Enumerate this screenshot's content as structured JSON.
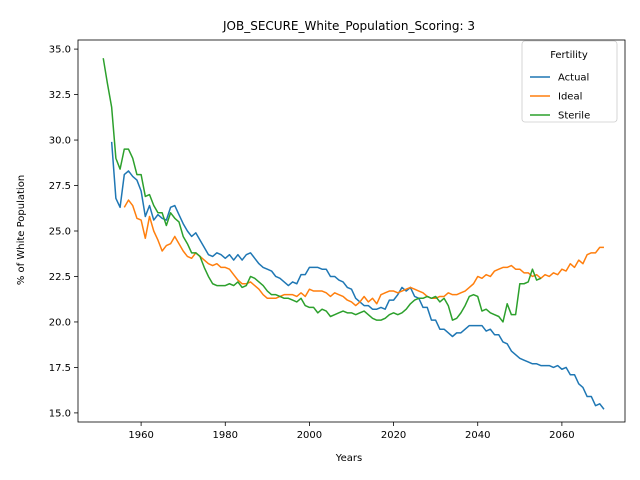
{
  "chart_data": {
    "type": "line",
    "title": "JOB_SECURE_White_Population_Scoring: 3",
    "xlabel": "Years",
    "ylabel": "% of White Population",
    "xlim": [
      1945,
      2075
    ],
    "ylim": [
      14.5,
      35.5
    ],
    "xticks": [
      1960,
      1980,
      2000,
      2020,
      2040,
      2060
    ],
    "yticks": [
      15.0,
      17.5,
      20.0,
      22.5,
      25.0,
      27.5,
      30.0,
      32.5,
      35.0
    ],
    "grid": false,
    "legend": {
      "title": "Fertility",
      "position": "top-right"
    },
    "series": [
      {
        "name": "Actual",
        "color": "#1f77b4",
        "x": [
          1953,
          1954,
          1955,
          1956,
          1957,
          1958,
          1959,
          1960,
          1961,
          1962,
          1963,
          1964,
          1965,
          1966,
          1967,
          1968,
          1969,
          1970,
          1971,
          1972,
          1973,
          1974,
          1975,
          1976,
          1977,
          1978,
          1979,
          1980,
          1981,
          1982,
          1983,
          1984,
          1985,
          1986,
          1987,
          1988,
          1989,
          1990,
          1991,
          1992,
          1993,
          1994,
          1995,
          1996,
          1997,
          1998,
          1999,
          2000,
          2001,
          2002,
          2003,
          2004,
          2005,
          2006,
          2007,
          2008,
          2009,
          2010,
          2011,
          2012,
          2013,
          2014,
          2015,
          2016,
          2017,
          2018,
          2019,
          2020,
          2021,
          2022,
          2023,
          2024,
          2025,
          2026,
          2027,
          2028,
          2029,
          2030,
          2031,
          2032,
          2033,
          2034,
          2035,
          2036,
          2037,
          2038,
          2039,
          2040,
          2041,
          2042,
          2043,
          2044,
          2045,
          2046,
          2047,
          2048,
          2049,
          2050,
          2051,
          2052,
          2053,
          2054,
          2055,
          2056,
          2057,
          2058,
          2059,
          2060,
          2061,
          2062,
          2063,
          2064,
          2065,
          2066,
          2067,
          2068,
          2069,
          2070
        ],
        "values": [
          29.9,
          26.8,
          26.3,
          28.1,
          28.3,
          28.0,
          27.8,
          27.2,
          25.8,
          26.4,
          25.6,
          25.9,
          25.7,
          25.6,
          26.3,
          26.4,
          25.9,
          25.4,
          25.0,
          24.7,
          24.9,
          24.5,
          24.1,
          23.7,
          23.6,
          23.8,
          23.7,
          23.5,
          23.7,
          23.4,
          23.7,
          23.4,
          23.7,
          23.8,
          23.5,
          23.2,
          23.0,
          22.9,
          22.8,
          22.5,
          22.4,
          22.2,
          22.0,
          22.2,
          22.1,
          22.6,
          22.6,
          23.0,
          23.0,
          23.0,
          22.9,
          22.9,
          22.5,
          22.5,
          22.3,
          22.2,
          21.9,
          21.8,
          21.3,
          21.1,
          20.9,
          20.9,
          20.7,
          20.7,
          20.8,
          20.7,
          21.2,
          21.2,
          21.5,
          21.9,
          21.7,
          21.9,
          21.4,
          21.3,
          20.8,
          20.8,
          20.1,
          20.1,
          19.6,
          19.6,
          19.4,
          19.2,
          19.4,
          19.4,
          19.6,
          19.8,
          19.8,
          19.8,
          19.8,
          19.5,
          19.6,
          19.3,
          19.3,
          18.9,
          18.8,
          18.4,
          18.2,
          18.0,
          17.9,
          17.8,
          17.7,
          17.7,
          17.6,
          17.6,
          17.6,
          17.5,
          17.6,
          17.4,
          17.5,
          17.1,
          17.1,
          16.6,
          16.4,
          15.9,
          15.9,
          15.4,
          15.5,
          15.2
        ]
      },
      {
        "name": "Ideal",
        "color": "#ff7f0e",
        "x": [
          1956,
          1957,
          1958,
          1959,
          1960,
          1961,
          1962,
          1963,
          1964,
          1965,
          1966,
          1967,
          1968,
          1969,
          1970,
          1971,
          1972,
          1973,
          1974,
          1975,
          1976,
          1977,
          1978,
          1979,
          1980,
          1981,
          1982,
          1983,
          1984,
          1985,
          1986,
          1987,
          1988,
          1989,
          1990,
          1991,
          1992,
          1993,
          1994,
          1995,
          1996,
          1997,
          1998,
          1999,
          2000,
          2001,
          2002,
          2003,
          2004,
          2005,
          2006,
          2007,
          2008,
          2009,
          2010,
          2011,
          2012,
          2013,
          2014,
          2015,
          2016,
          2017,
          2018,
          2019,
          2020,
          2021,
          2022,
          2023,
          2024,
          2025,
          2026,
          2027,
          2028,
          2029,
          2030,
          2031,
          2032,
          2033,
          2034,
          2035,
          2036,
          2037,
          2038,
          2039,
          2040,
          2041,
          2042,
          2043,
          2044,
          2045,
          2046,
          2047,
          2048,
          2049,
          2050,
          2051,
          2052,
          2053,
          2054,
          2055,
          2056,
          2057,
          2058,
          2059,
          2060,
          2061,
          2062,
          2063,
          2064,
          2065,
          2066,
          2067,
          2068,
          2069,
          2070
        ],
        "values": [
          26.3,
          26.7,
          26.4,
          25.7,
          25.6,
          24.6,
          25.8,
          25.0,
          24.5,
          23.9,
          24.2,
          24.3,
          24.7,
          24.3,
          23.9,
          23.6,
          23.5,
          23.8,
          23.6,
          23.4,
          23.2,
          23.1,
          23.2,
          23.0,
          23.0,
          22.9,
          22.6,
          22.3,
          22.1,
          22.1,
          22.2,
          22.0,
          21.8,
          21.5,
          21.3,
          21.3,
          21.3,
          21.4,
          21.5,
          21.5,
          21.5,
          21.4,
          21.6,
          21.4,
          21.8,
          21.7,
          21.7,
          21.7,
          21.6,
          21.4,
          21.6,
          21.5,
          21.4,
          21.2,
          21.1,
          20.9,
          21.1,
          21.4,
          21.1,
          21.3,
          21.0,
          21.5,
          21.6,
          21.7,
          21.7,
          21.6,
          21.7,
          21.8,
          21.9,
          21.8,
          21.7,
          21.6,
          21.4,
          21.3,
          21.3,
          21.4,
          21.4,
          21.6,
          21.5,
          21.5,
          21.6,
          21.7,
          21.9,
          22.1,
          22.5,
          22.4,
          22.6,
          22.5,
          22.8,
          22.9,
          23.0,
          23.0,
          23.1,
          22.9,
          22.9,
          22.7,
          22.7,
          22.5,
          22.6,
          22.4,
          22.6,
          22.5,
          22.7,
          22.6,
          22.9,
          22.8,
          23.2,
          23.0,
          23.4,
          23.2,
          23.7,
          23.8,
          23.8,
          24.1,
          24.1
        ]
      },
      {
        "name": "Sterile",
        "color": "#2ca02c",
        "x": [
          1951,
          1952,
          1953,
          1954,
          1955,
          1956,
          1957,
          1958,
          1959,
          1960,
          1961,
          1962,
          1963,
          1964,
          1965,
          1966,
          1967,
          1968,
          1969,
          1970,
          1971,
          1972,
          1973,
          1974,
          1975,
          1976,
          1977,
          1978,
          1979,
          1980,
          1981,
          1982,
          1983,
          1984,
          1985,
          1986,
          1987,
          1988,
          1989,
          1990,
          1991,
          1992,
          1993,
          1994,
          1995,
          1996,
          1997,
          1998,
          1999,
          2000,
          2001,
          2002,
          2003,
          2004,
          2005,
          2006,
          2007,
          2008,
          2009,
          2010,
          2011,
          2012,
          2013,
          2014,
          2015,
          2016,
          2017,
          2018,
          2019,
          2020,
          2021,
          2022,
          2023,
          2024,
          2025,
          2026,
          2027,
          2028,
          2029,
          2030,
          2031,
          2032,
          2033,
          2034,
          2035,
          2036,
          2037,
          2038,
          2039,
          2040,
          2041,
          2042,
          2043,
          2044,
          2045,
          2046,
          2047,
          2048,
          2049,
          2050,
          2051,
          2052,
          2053,
          2054,
          2055
        ],
        "values": [
          34.5,
          33.1,
          31.8,
          29.0,
          28.4,
          29.5,
          29.5,
          29.0,
          28.1,
          28.1,
          26.9,
          27.0,
          26.4,
          26.0,
          26.0,
          25.3,
          26.0,
          25.7,
          25.5,
          24.7,
          24.3,
          23.8,
          23.8,
          23.6,
          23.0,
          22.5,
          22.1,
          22.0,
          22.0,
          22.0,
          22.1,
          22.0,
          22.2,
          21.9,
          22.0,
          22.5,
          22.4,
          22.2,
          22.0,
          21.7,
          21.5,
          21.5,
          21.4,
          21.3,
          21.3,
          21.2,
          21.1,
          21.3,
          20.9,
          20.8,
          20.8,
          20.5,
          20.7,
          20.6,
          20.3,
          20.4,
          20.5,
          20.6,
          20.5,
          20.5,
          20.4,
          20.5,
          20.6,
          20.4,
          20.2,
          20.1,
          20.1,
          20.2,
          20.4,
          20.5,
          20.4,
          20.5,
          20.7,
          21.0,
          21.2,
          21.3,
          21.3,
          21.4,
          21.3,
          21.4,
          21.1,
          21.3,
          20.9,
          20.1,
          20.2,
          20.5,
          20.9,
          21.4,
          21.5,
          21.4,
          20.6,
          20.7,
          20.5,
          20.4,
          20.3,
          20.0,
          21.0,
          20.4,
          20.4,
          22.1,
          22.1,
          22.2,
          22.9,
          22.3,
          22.4
        ]
      }
    ]
  }
}
